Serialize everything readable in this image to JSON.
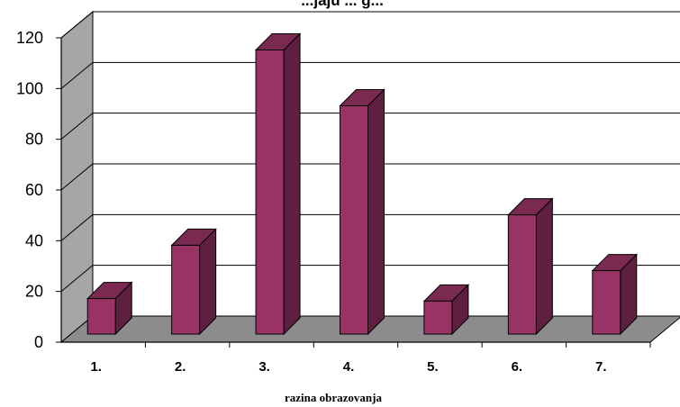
{
  "chart_data": {
    "type": "bar",
    "title": "...jaju ... g...",
    "xlabel": "razina obrazovanja",
    "ylabel": "",
    "categories": [
      "1.",
      "2.",
      "3.",
      "4.",
      "5.",
      "6.",
      "7."
    ],
    "values": [
      14,
      35,
      112,
      90,
      13,
      47,
      25
    ],
    "ylim": [
      0,
      120
    ],
    "yticks": [
      0,
      20,
      40,
      60,
      80,
      100,
      120
    ],
    "grid": true,
    "legend": "none",
    "style": "3d",
    "colors": {
      "bar_front": "#993366",
      "bar_side": "#5e1f40",
      "bar_top": "#7a2950",
      "floor": "#8c8c8c",
      "wall": "#ffffff",
      "side_wall": "#a6a6a6"
    }
  }
}
